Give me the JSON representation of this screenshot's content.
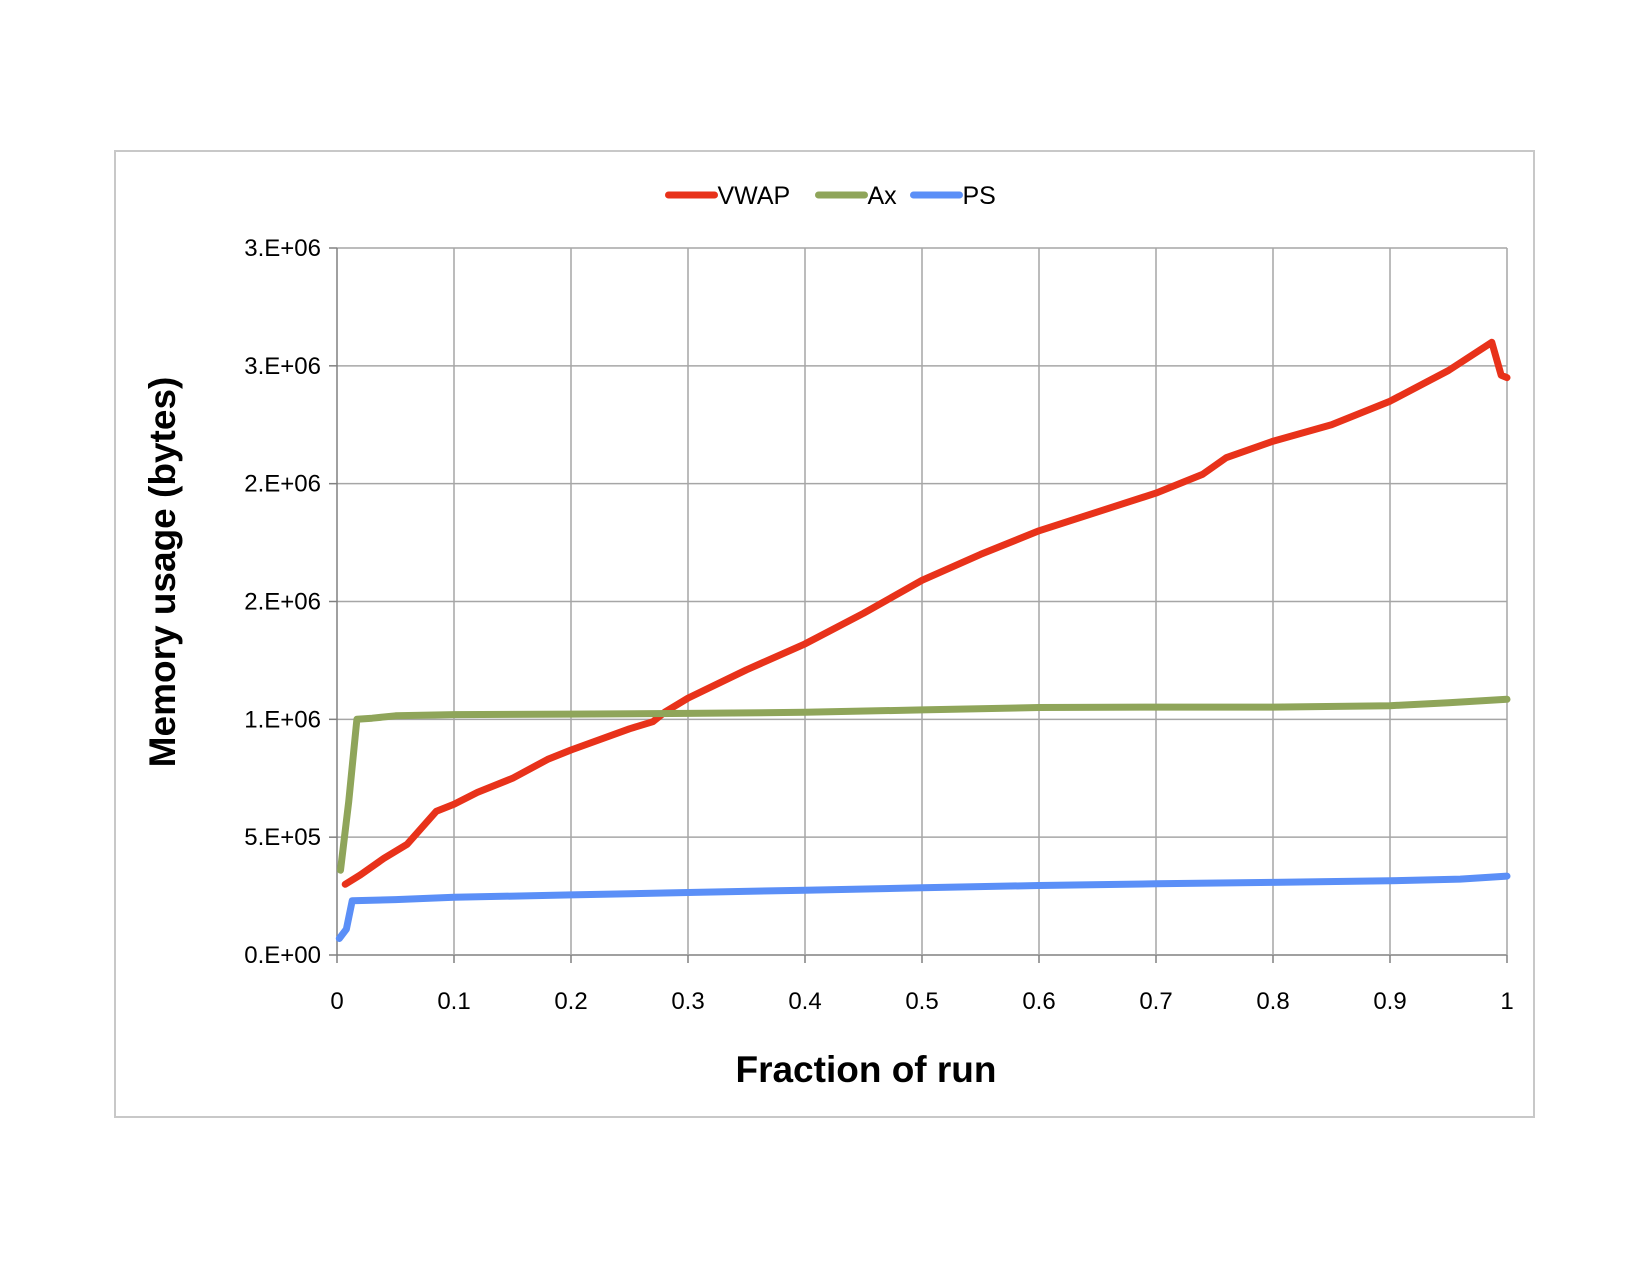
{
  "chart_data": {
    "type": "line",
    "title": "",
    "xlabel": "Fraction of run",
    "ylabel": "Memory usage (bytes)",
    "xlim": [
      0,
      1
    ],
    "ylim": [
      0,
      3000000
    ],
    "x_ticks": [
      {
        "value": 0,
        "label": "0"
      },
      {
        "value": 0.1,
        "label": "0.1"
      },
      {
        "value": 0.2,
        "label": "0.2"
      },
      {
        "value": 0.3,
        "label": "0.3"
      },
      {
        "value": 0.4,
        "label": "0.4"
      },
      {
        "value": 0.5,
        "label": "0.5"
      },
      {
        "value": 0.6,
        "label": "0.6"
      },
      {
        "value": 0.7,
        "label": "0.7"
      },
      {
        "value": 0.8,
        "label": "0.8"
      },
      {
        "value": 0.9,
        "label": "0.9"
      },
      {
        "value": 1,
        "label": "1"
      }
    ],
    "y_ticks": [
      {
        "value": 0,
        "label": "0.E+00"
      },
      {
        "value": 500000,
        "label": "5.E+05"
      },
      {
        "value": 1000000,
        "label": "1.E+06"
      },
      {
        "value": 1500000,
        "label": "2.E+06"
      },
      {
        "value": 2000000,
        "label": "2.E+06"
      },
      {
        "value": 2500000,
        "label": "3.E+06"
      },
      {
        "value": 3000000,
        "label": "3.E+06"
      }
    ],
    "grid": true,
    "legend_position": "top-center",
    "series": [
      {
        "name": "VWAP",
        "color": "#e8321a",
        "points": [
          [
            0.007,
            300000
          ],
          [
            0.02,
            340000
          ],
          [
            0.04,
            410000
          ],
          [
            0.06,
            470000
          ],
          [
            0.085,
            610000
          ],
          [
            0.1,
            640000
          ],
          [
            0.12,
            690000
          ],
          [
            0.15,
            750000
          ],
          [
            0.18,
            830000
          ],
          [
            0.2,
            870000
          ],
          [
            0.25,
            960000
          ],
          [
            0.27,
            990000
          ],
          [
            0.28,
            1030000
          ],
          [
            0.3,
            1090000
          ],
          [
            0.35,
            1210000
          ],
          [
            0.4,
            1320000
          ],
          [
            0.45,
            1450000
          ],
          [
            0.5,
            1590000
          ],
          [
            0.55,
            1700000
          ],
          [
            0.6,
            1800000
          ],
          [
            0.65,
            1880000
          ],
          [
            0.7,
            1960000
          ],
          [
            0.74,
            2040000
          ],
          [
            0.76,
            2110000
          ],
          [
            0.8,
            2180000
          ],
          [
            0.85,
            2250000
          ],
          [
            0.9,
            2350000
          ],
          [
            0.95,
            2480000
          ],
          [
            0.987,
            2600000
          ],
          [
            0.995,
            2460000
          ],
          [
            1.0,
            2450000
          ]
        ]
      },
      {
        "name": "Ax",
        "color": "#8fa55a",
        "points": [
          [
            0.003,
            360000
          ],
          [
            0.01,
            650000
          ],
          [
            0.017,
            1000000
          ],
          [
            0.03,
            1005000
          ],
          [
            0.05,
            1015000
          ],
          [
            0.1,
            1020000
          ],
          [
            0.2,
            1022000
          ],
          [
            0.3,
            1025000
          ],
          [
            0.4,
            1030000
          ],
          [
            0.5,
            1040000
          ],
          [
            0.6,
            1050000
          ],
          [
            0.7,
            1052000
          ],
          [
            0.8,
            1052000
          ],
          [
            0.9,
            1058000
          ],
          [
            0.95,
            1070000
          ],
          [
            1.0,
            1085000
          ]
        ]
      },
      {
        "name": "PS",
        "color": "#5b8ff7",
        "points": [
          [
            0.002,
            70000
          ],
          [
            0.008,
            110000
          ],
          [
            0.013,
            230000
          ],
          [
            0.05,
            235000
          ],
          [
            0.1,
            245000
          ],
          [
            0.2,
            255000
          ],
          [
            0.3,
            265000
          ],
          [
            0.4,
            275000
          ],
          [
            0.5,
            285000
          ],
          [
            0.6,
            295000
          ],
          [
            0.7,
            302000
          ],
          [
            0.8,
            308000
          ],
          [
            0.9,
            315000
          ],
          [
            0.96,
            322000
          ],
          [
            1.0,
            335000
          ]
        ]
      }
    ]
  }
}
